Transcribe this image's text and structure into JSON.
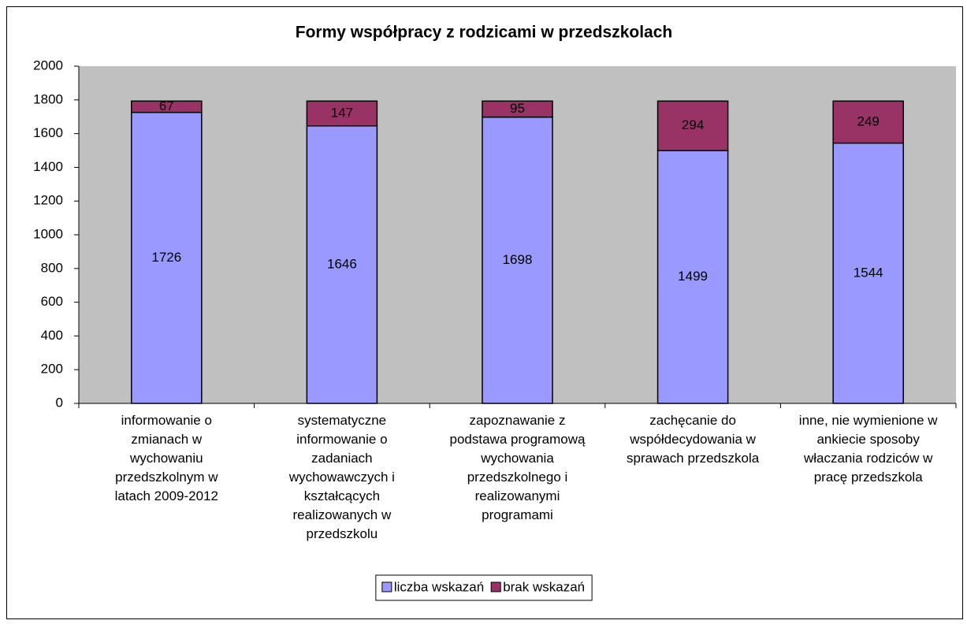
{
  "chart_data": {
    "type": "stacked_bar",
    "title": "Formy współpracy z rodzicami w przedszkolach",
    "categories": [
      "informowanie o zmianach w wychowaniu przedszkolnym w latach 2009-2012",
      "systematyczne informowanie o zadaniach wychowawczych i kształcących realizowanych w przedszkolu",
      "zapoznawanie z podstawa programową wychowania przedszkolnego i realizowanymi programami",
      "zachęcanie do współdecydowania w sprawach przedszkola",
      "inne, nie wymienione w ankiecie sposoby właczania rodziców w pracę przedszkola"
    ],
    "series": [
      {
        "name": "liczba wskazań",
        "color": "#9999ff",
        "values": [
          1726,
          1646,
          1698,
          1499,
          1544
        ]
      },
      {
        "name": "brak wskazań",
        "color": "#993366",
        "values": [
          67,
          147,
          95,
          294,
          249
        ]
      }
    ],
    "ylim": [
      0,
      2000
    ],
    "yticks": [
      0,
      200,
      400,
      600,
      800,
      1000,
      1200,
      1400,
      1600,
      1800,
      2000
    ],
    "grid": false,
    "legend": "bottom"
  }
}
